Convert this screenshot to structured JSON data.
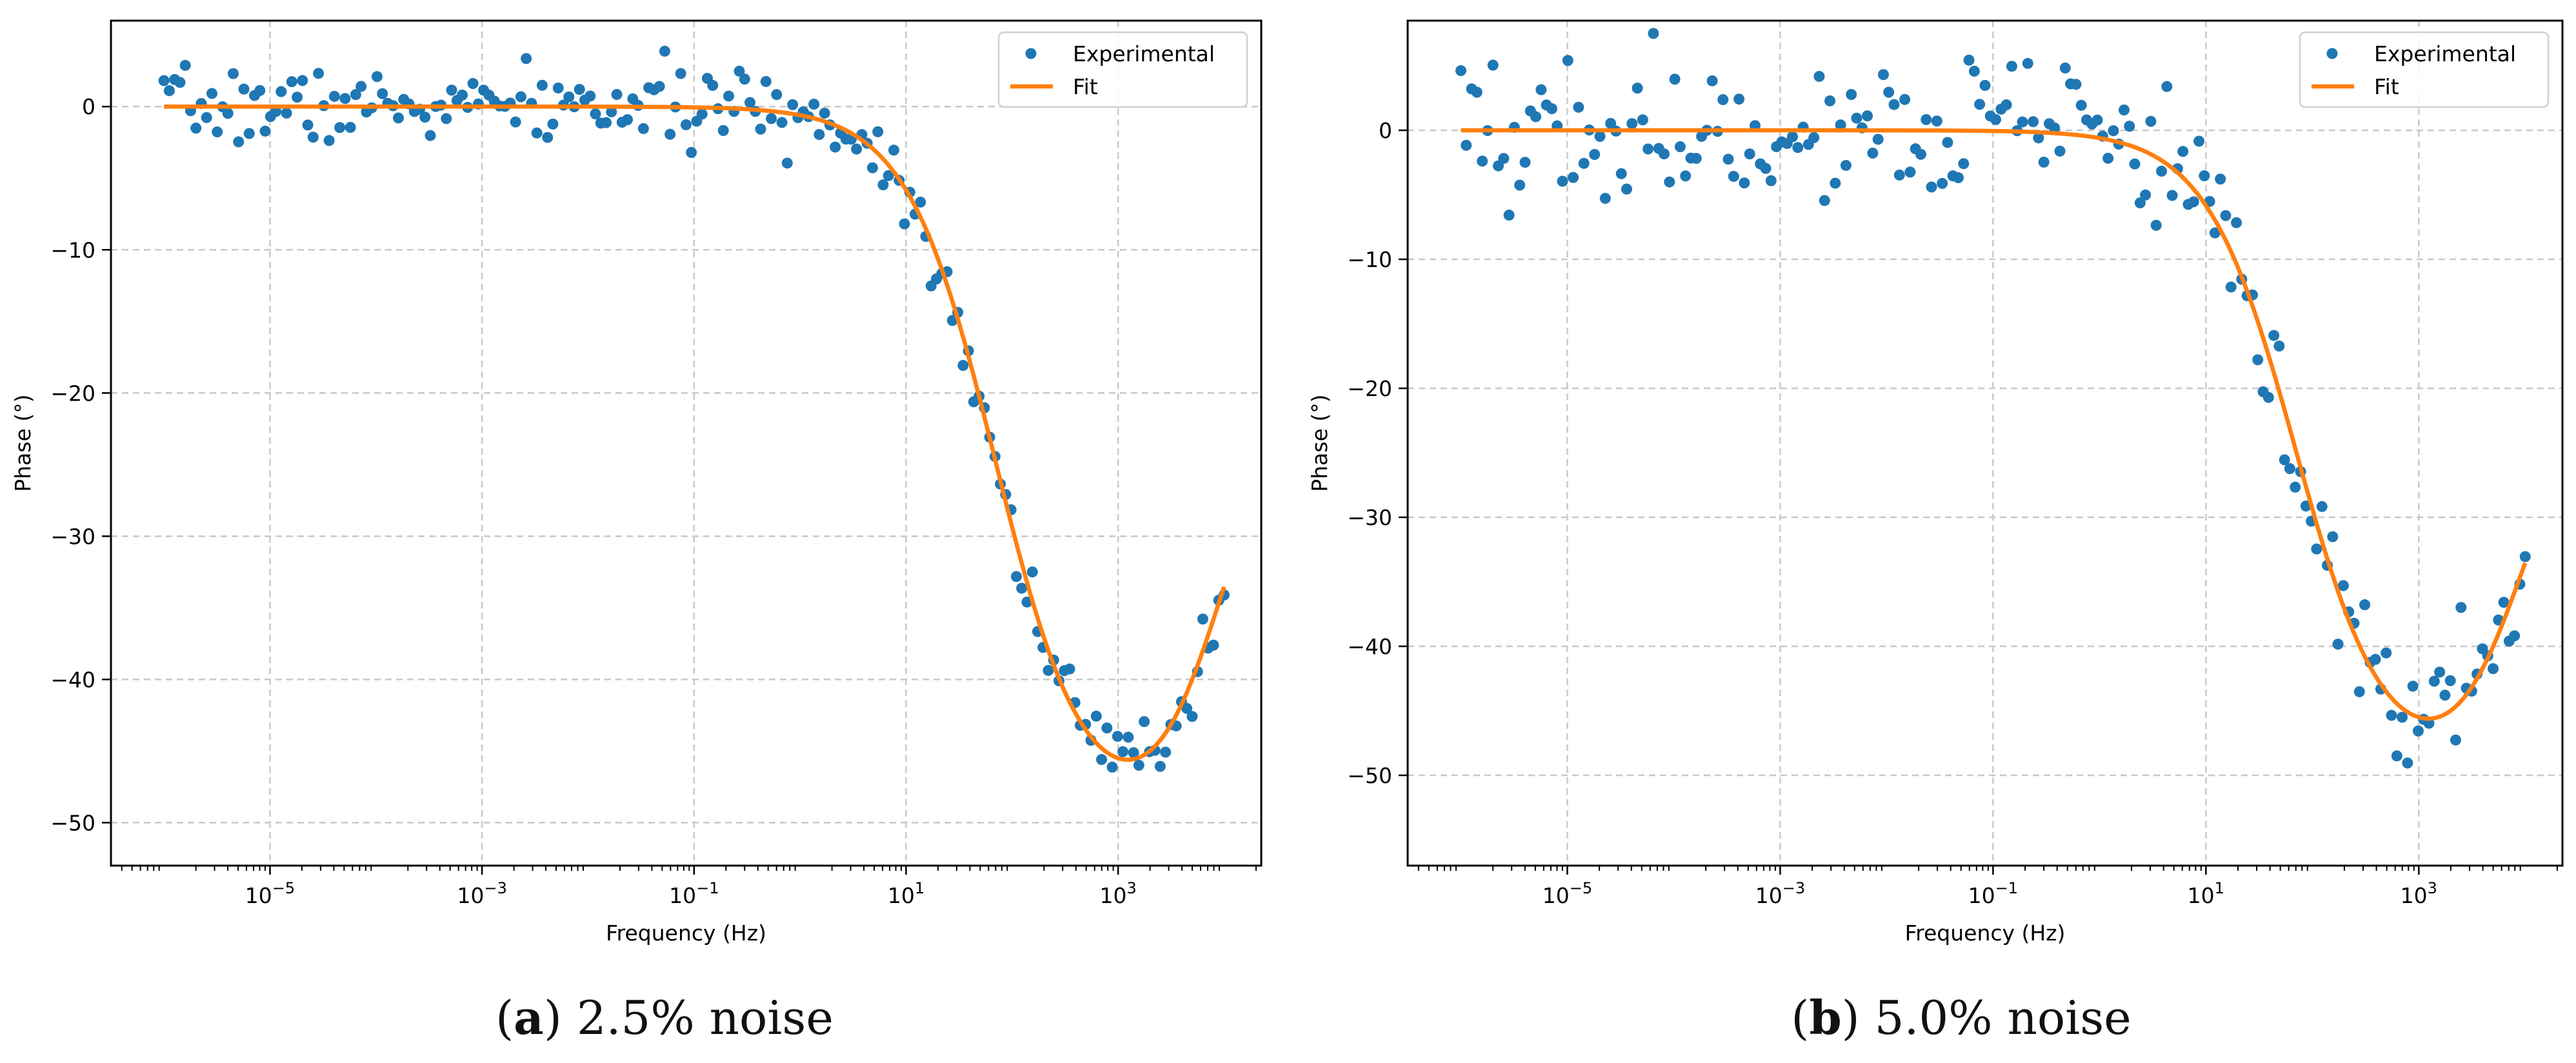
{
  "figure": {
    "caption_a": {
      "letter": "a",
      "text": "2.5% noise"
    },
    "caption_b": {
      "letter": "b",
      "text": "5.0% noise"
    }
  },
  "colors": {
    "experimental": "#1f77b4",
    "fit": "#ff7f0e",
    "grid": "#c8c8c8",
    "axis": "#000000"
  },
  "chart_data": [
    {
      "type": "scatter",
      "panel": "a",
      "title": "",
      "xlabel": "Frequency (Hz)",
      "ylabel": "Phase (°)",
      "xscale": "log",
      "xlim_log10": [
        -6.5,
        4.35
      ],
      "ylim": [
        -53,
        6
      ],
      "xticks": [
        {
          "exp": -5,
          "label": "10−5"
        },
        {
          "exp": -3,
          "label": "10−3"
        },
        {
          "exp": -1,
          "label": "10−1"
        },
        {
          "exp": 1,
          "label": "101"
        },
        {
          "exp": 3,
          "label": "103"
        }
      ],
      "yticks": [
        0,
        -10,
        -20,
        -30,
        -40,
        -50
      ],
      "grid": true,
      "legend": {
        "position": "top-right",
        "entries": [
          "Experimental",
          "Fit"
        ]
      },
      "series": [
        {
          "name": "Experimental",
          "kind": "points",
          "noise_scale": 1.0,
          "seed": 7
        },
        {
          "name": "Fit",
          "kind": "line",
          "model": {
            "stage1_log_f": 1.85,
            "stage1_width": 0.42,
            "stage1_depth": -50,
            "stage2_log_f": 3.95,
            "stage2_width": 0.32,
            "stage2_rise": 30
          }
        }
      ],
      "n_points": 200,
      "x_range_log10": [
        -6.0,
        4.0
      ]
    },
    {
      "type": "scatter",
      "panel": "b",
      "title": "",
      "xlabel": "Frequency (Hz)",
      "ylabel": "Phase (°)",
      "xscale": "log",
      "xlim_log10": [
        -6.5,
        4.35
      ],
      "ylim": [
        -57,
        8.5
      ],
      "xticks": [
        {
          "exp": -5,
          "label": "10−5"
        },
        {
          "exp": -3,
          "label": "10−3"
        },
        {
          "exp": -1,
          "label": "10−1"
        },
        {
          "exp": 1,
          "label": "101"
        },
        {
          "exp": 3,
          "label": "103"
        }
      ],
      "yticks": [
        0,
        -10,
        -20,
        -30,
        -40,
        -50
      ],
      "grid": true,
      "legend": {
        "position": "top-right",
        "entries": [
          "Experimental",
          "Fit"
        ]
      },
      "series": [
        {
          "name": "Experimental",
          "kind": "points",
          "noise_scale": 2.2,
          "seed": 19
        },
        {
          "name": "Fit",
          "kind": "line",
          "model": {
            "stage1_log_f": 1.85,
            "stage1_width": 0.42,
            "stage1_depth": -50,
            "stage2_log_f": 3.95,
            "stage2_width": 0.32,
            "stage2_rise": 30
          }
        }
      ],
      "n_points": 200,
      "x_range_log10": [
        -6.0,
        4.0
      ]
    }
  ]
}
